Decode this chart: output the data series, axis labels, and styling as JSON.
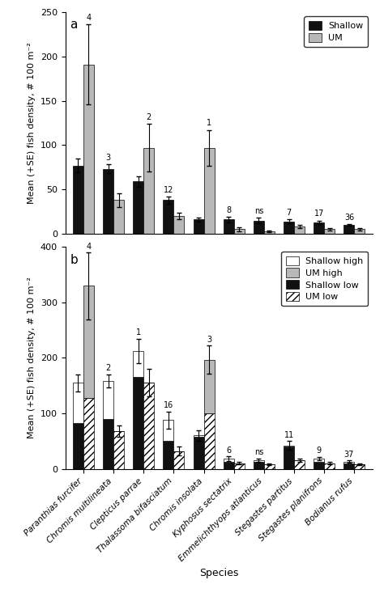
{
  "species": [
    "Paranthias furcifer",
    "Chromis multilineata",
    "Clepticus parrae",
    "Thalassoma bifasciatum",
    "Chromis insolata",
    "Kyphosus sectatrix",
    "Emmelichthyops atlanticus",
    "Stegastes partitus",
    "Stegastes planifrons",
    "Bodianus rufus"
  ],
  "panel_a": {
    "shallow": [
      77,
      73,
      59,
      38,
      16,
      16,
      15,
      14,
      13,
      10
    ],
    "shallow_se": [
      8,
      5,
      6,
      4,
      2,
      3,
      3,
      2,
      2,
      1
    ],
    "um": [
      191,
      38,
      97,
      20,
      97,
      5,
      3,
      8,
      5,
      5
    ],
    "um_se": [
      45,
      8,
      27,
      4,
      20,
      2,
      1,
      2,
      1,
      1
    ],
    "labels": [
      "4",
      "3",
      "2",
      "12",
      "1",
      "8",
      "ns",
      "7",
      "17",
      "36"
    ],
    "ylim": [
      0,
      250
    ],
    "yticks": [
      0,
      50,
      100,
      150,
      200,
      250
    ]
  },
  "panel_b": {
    "sh_total": [
      155,
      158,
      212,
      88,
      60,
      18,
      15,
      42,
      18,
      13
    ],
    "sh_low": [
      82,
      90,
      165,
      50,
      58,
      12,
      13,
      40,
      12,
      10
    ],
    "sh_se": [
      15,
      12,
      22,
      15,
      10,
      4,
      3,
      8,
      3,
      2
    ],
    "um_total": [
      330,
      68,
      155,
      32,
      197,
      10,
      8,
      16,
      10,
      8
    ],
    "um_low": [
      128,
      68,
      155,
      32,
      100,
      10,
      8,
      16,
      10,
      8
    ],
    "um_se": [
      60,
      10,
      25,
      8,
      25,
      2,
      2,
      3,
      2,
      1
    ],
    "labels": [
      "4",
      "2",
      "1",
      "16",
      "3",
      "6",
      "ns",
      "11",
      "9",
      "37"
    ],
    "ylim": [
      0,
      400
    ],
    "yticks": [
      0,
      100,
      200,
      300,
      400
    ]
  },
  "bar_width": 0.35,
  "shallow_color": "#111111",
  "um_color": "#b8b8b8",
  "ylabel": "Mean (+SE) fish density, # 100 m⁻²",
  "xlabel": "Species"
}
